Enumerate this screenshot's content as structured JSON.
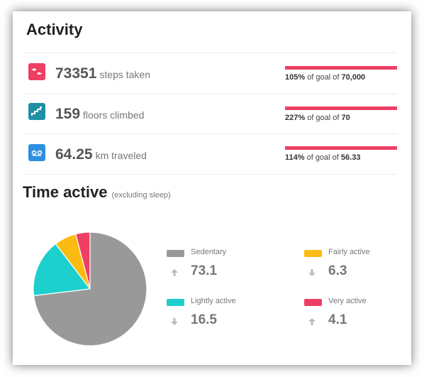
{
  "header": {
    "title": "Activity"
  },
  "metrics": [
    {
      "value": "73351",
      "unit": "steps taken",
      "pct": "105%",
      "goal_prefix": "of goal of",
      "goal": "70,000",
      "progress": 1.0,
      "icon": "footsteps-icon",
      "color": "#ee3e63"
    },
    {
      "value": "159",
      "unit": "floors climbed",
      "pct": "227%",
      "goal_prefix": "of goal of",
      "goal": "70",
      "progress": 1.0,
      "icon": "stairs-icon",
      "color": "#1f8fa6"
    },
    {
      "value": "64.25",
      "unit": "km traveled",
      "pct": "114%",
      "goal_prefix": "of goal of",
      "goal": "56.33",
      "progress": 1.0,
      "icon": "distance-icon",
      "color": "#2e8fe0"
    }
  ],
  "time_active": {
    "title": "Time active",
    "subtitle": "(excluding sleep)",
    "legend": [
      {
        "label": "Sedentary",
        "value": "73.1",
        "trend": "up",
        "color": "#999999"
      },
      {
        "label": "Fairly active",
        "value": "6.3",
        "trend": "down",
        "color": "#fcbb12"
      },
      {
        "label": "Lightly active",
        "value": "16.5",
        "trend": "down",
        "color": "#1dcfcd"
      },
      {
        "label": "Very active",
        "value": "4.1",
        "trend": "up",
        "color": "#ee3e63"
      }
    ]
  },
  "chart_data": {
    "type": "pie",
    "categories": [
      "Sedentary",
      "Lightly active",
      "Fairly active",
      "Very active"
    ],
    "values": [
      73.1,
      16.5,
      6.3,
      4.1
    ],
    "colors": [
      "#999999",
      "#1dcfcd",
      "#fcbb12",
      "#ee3e63"
    ],
    "legend_placement": "right"
  }
}
